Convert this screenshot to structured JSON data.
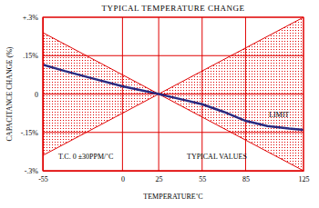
{
  "chart_data": {
    "type": "line",
    "title": "TYPICAL TEMPERATURE CHANGE",
    "x_label": "TEMPERATURE˚C",
    "y_label": "CAPACITANCE CHANGE (%)",
    "annotations": [
      "T.C. 0 ±30PPM/˚C"
    ],
    "xlim": [
      -55,
      125
    ],
    "xticks": [
      -55,
      0,
      25,
      55,
      85,
      125
    ],
    "ylim": [
      -0.3,
      0.3
    ],
    "yticks": [
      {
        "value": -0.3,
        "label": "-.3%"
      },
      {
        "value": -0.15,
        "label": "-.15%"
      },
      0,
      {
        "value": 0.15,
        "label": ".15%"
      },
      {
        "value": 0.3,
        "label": "+.3%"
      }
    ],
    "grid": true,
    "series": [
      {
        "name": "LIMIT",
        "color": "#e00000",
        "x": [
          -55,
          125
        ],
        "values": [
          -0.24,
          0.3
        ]
      },
      {
        "color": "#e00000",
        "x": [
          -55,
          125
        ],
        "values": [
          0.24,
          -0.3
        ]
      },
      {
        "name": "TYPICAL VALUES",
        "color": "#2a2a80",
        "x": [
          -55,
          -40,
          -20,
          0,
          25,
          40,
          55,
          70,
          85,
          100,
          115,
          125
        ],
        "values": [
          0.115,
          0.09,
          0.06,
          0.03,
          0,
          -0.02,
          -0.04,
          -0.07,
          -0.105,
          -0.125,
          -0.135,
          -0.14
        ]
      }
    ]
  }
}
